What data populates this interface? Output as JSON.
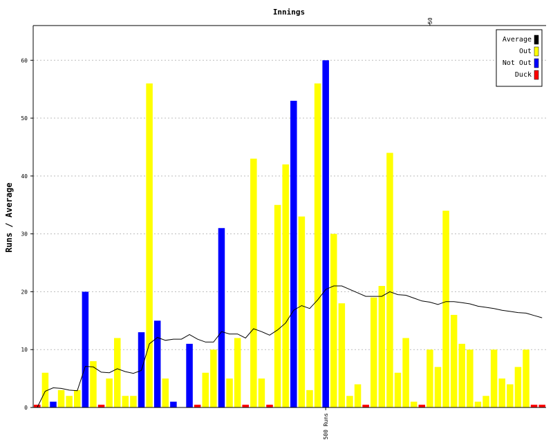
{
  "chart_data": {
    "type": "bar",
    "title": "Innings",
    "xlabel": "",
    "ylabel": "Runs / Average",
    "ylim": [
      0,
      66
    ],
    "yticks": [
      0,
      10,
      20,
      30,
      40,
      50,
      60
    ],
    "grid": true,
    "legend_position": "top-right",
    "legend": [
      {
        "label": "Average",
        "color": "#000000"
      },
      {
        "label": "Out",
        "color": "#ffff00"
      },
      {
        "label": "Not Out",
        "color": "#0000ff"
      },
      {
        "label": "Duck",
        "color": "#ff0000"
      }
    ],
    "milestones": [
      {
        "label": "50",
        "innings": 50,
        "axis": "top"
      },
      {
        "label": "500 Runs",
        "innings": 37,
        "axis": "bottom"
      }
    ],
    "innings": [
      {
        "n": 1,
        "runs": 0,
        "status": "duck"
      },
      {
        "n": 2,
        "runs": 6,
        "status": "out"
      },
      {
        "n": 3,
        "runs": 1,
        "status": "notout"
      },
      {
        "n": 4,
        "runs": 3,
        "status": "out"
      },
      {
        "n": 5,
        "runs": 2,
        "status": "out"
      },
      {
        "n": 6,
        "runs": 3,
        "status": "out"
      },
      {
        "n": 7,
        "runs": 20,
        "status": "notout"
      },
      {
        "n": 8,
        "runs": 8,
        "status": "out"
      },
      {
        "n": 9,
        "runs": 0,
        "status": "duck"
      },
      {
        "n": 10,
        "runs": 5,
        "status": "out"
      },
      {
        "n": 11,
        "runs": 12,
        "status": "out"
      },
      {
        "n": 12,
        "runs": 2,
        "status": "out"
      },
      {
        "n": 13,
        "runs": 2,
        "status": "out"
      },
      {
        "n": 14,
        "runs": 13,
        "status": "notout"
      },
      {
        "n": 15,
        "runs": 56,
        "status": "out"
      },
      {
        "n": 16,
        "runs": 15,
        "status": "notout"
      },
      {
        "n": 17,
        "runs": 5,
        "status": "out"
      },
      {
        "n": 18,
        "runs": 1,
        "status": "notout"
      },
      {
        "n": 19,
        "runs": 0,
        "status": "none"
      },
      {
        "n": 20,
        "runs": 11,
        "status": "notout"
      },
      {
        "n": 21,
        "runs": 0,
        "status": "duck"
      },
      {
        "n": 22,
        "runs": 6,
        "status": "out"
      },
      {
        "n": 23,
        "runs": 10,
        "status": "out"
      },
      {
        "n": 24,
        "runs": 31,
        "status": "notout"
      },
      {
        "n": 25,
        "runs": 5,
        "status": "out"
      },
      {
        "n": 26,
        "runs": 12,
        "status": "out"
      },
      {
        "n": 27,
        "runs": 0,
        "status": "duck"
      },
      {
        "n": 28,
        "runs": 43,
        "status": "out"
      },
      {
        "n": 29,
        "runs": 5,
        "status": "out"
      },
      {
        "n": 30,
        "runs": 0,
        "status": "duck"
      },
      {
        "n": 31,
        "runs": 35,
        "status": "out"
      },
      {
        "n": 32,
        "runs": 42,
        "status": "out"
      },
      {
        "n": 33,
        "runs": 53,
        "status": "notout"
      },
      {
        "n": 34,
        "runs": 33,
        "status": "out"
      },
      {
        "n": 35,
        "runs": 3,
        "status": "out"
      },
      {
        "n": 36,
        "runs": 56,
        "status": "out"
      },
      {
        "n": 37,
        "runs": 60,
        "status": "notout"
      },
      {
        "n": 38,
        "runs": 30,
        "status": "out"
      },
      {
        "n": 39,
        "runs": 18,
        "status": "out"
      },
      {
        "n": 40,
        "runs": 2,
        "status": "out"
      },
      {
        "n": 41,
        "runs": 4,
        "status": "out"
      },
      {
        "n": 42,
        "runs": 0,
        "status": "duck"
      },
      {
        "n": 43,
        "runs": 19,
        "status": "out"
      },
      {
        "n": 44,
        "runs": 21,
        "status": "out"
      },
      {
        "n": 45,
        "runs": 44,
        "status": "out"
      },
      {
        "n": 46,
        "runs": 6,
        "status": "out"
      },
      {
        "n": 47,
        "runs": 12,
        "status": "out"
      },
      {
        "n": 48,
        "runs": 1,
        "status": "out"
      },
      {
        "n": 49,
        "runs": 0,
        "status": "duck"
      },
      {
        "n": 50,
        "runs": 10,
        "status": "out"
      },
      {
        "n": 51,
        "runs": 7,
        "status": "out"
      },
      {
        "n": 52,
        "runs": 34,
        "status": "out"
      },
      {
        "n": 53,
        "runs": 16,
        "status": "out"
      },
      {
        "n": 54,
        "runs": 11,
        "status": "out"
      },
      {
        "n": 55,
        "runs": 10,
        "status": "out"
      },
      {
        "n": 56,
        "runs": 1,
        "status": "out"
      },
      {
        "n": 57,
        "runs": 2,
        "status": "out"
      },
      {
        "n": 58,
        "runs": 10,
        "status": "out"
      },
      {
        "n": 59,
        "runs": 5,
        "status": "out"
      },
      {
        "n": 60,
        "runs": 4,
        "status": "out"
      },
      {
        "n": 61,
        "runs": 7,
        "status": "out"
      },
      {
        "n": 62,
        "runs": 10,
        "status": "out"
      },
      {
        "n": 63,
        "runs": 0,
        "status": "duck"
      },
      {
        "n": 64,
        "runs": 0,
        "status": "duck"
      }
    ],
    "average": [
      0,
      2.8,
      3.4,
      3.3,
      3.0,
      2.9,
      7.1,
      7.0,
      6.1,
      6.0,
      6.7,
      6.2,
      5.9,
      6.4,
      11.0,
      12.1,
      11.6,
      11.8,
      11.8,
      12.6,
      11.8,
      11.3,
      11.3,
      13.1,
      12.7,
      12.7,
      12.0,
      13.6,
      13.1,
      12.5,
      13.4,
      14.6,
      16.8,
      17.6,
      17.1,
      18.6,
      20.4,
      21.0,
      21.0,
      20.4,
      19.8,
      19.2,
      19.2,
      19.2,
      20.0,
      19.5,
      19.4,
      18.9,
      18.4,
      18.2,
      17.8,
      18.3,
      18.3,
      18.1,
      17.9,
      17.5,
      17.3,
      17.1,
      16.8,
      16.6,
      16.4,
      16.3,
      15.9,
      15.5
    ]
  }
}
